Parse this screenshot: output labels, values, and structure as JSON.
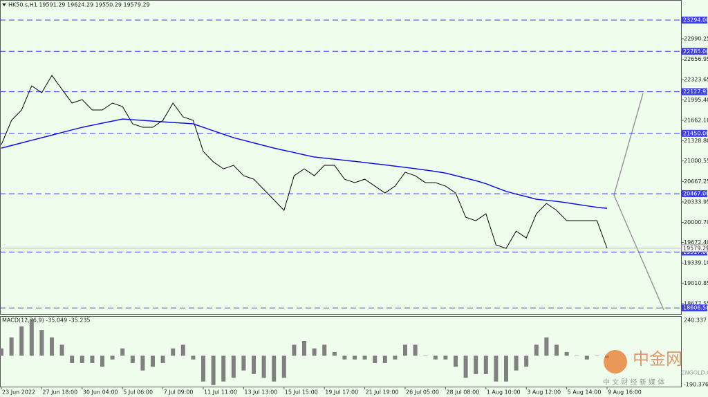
{
  "chart_data": [
    {
      "type": "line",
      "title": "HK50.s,H1  19591.29 19624.29 19550.29 19579.29",
      "categories": [
        "23 Jun 2022",
        null,
        null,
        null,
        "27 Jun 18:00",
        null,
        null,
        null,
        "30 Jun 04:00",
        null,
        null,
        null,
        "5 Jul 06:00",
        null,
        null,
        null,
        "7 Jul 09:00",
        null,
        null,
        null,
        "11 Jul 11:00",
        null,
        null,
        null,
        "13 Jul 13:00",
        null,
        null,
        null,
        "15 Jul 15:00",
        null,
        null,
        null,
        "19 Jul 17:00",
        null,
        null,
        null,
        "21 Jul 19:00",
        null,
        null,
        null,
        "26 Jul 05:00",
        null,
        null,
        null,
        "28 Jul 08:00",
        null,
        null,
        null,
        "1 Aug 10:00",
        null,
        null,
        null,
        "3 Aug 12:00",
        null,
        null,
        null,
        "5 Aug 14:00",
        null,
        null,
        null,
        "9 Aug 16:00"
      ],
      "series": [
        {
          "color": "#000000",
          "values": [
            21267,
            21661,
            21830,
            22224,
            22112,
            22393,
            22168,
            21943,
            21999,
            21830,
            21830,
            21943,
            21886,
            21605,
            21549,
            21549,
            21661,
            21943,
            21718,
            21661,
            21154,
            20985,
            20872,
            20929,
            20760,
            20703,
            20535,
            20366,
            20196,
            20760,
            20872,
            20760,
            20929,
            20929,
            20703,
            20647,
            20703,
            20591,
            20478,
            20591,
            20816,
            20760,
            20647,
            20647,
            20591,
            20478,
            20084,
            20028,
            20140,
            19633,
            19577,
            19858,
            19746,
            20140,
            20309,
            20196,
            20028,
            20028,
            20028,
            20028,
            19579.29
          ]
        },
        {
          "color": "#1010e0",
          "values": [
            21210,
            21252,
            21294,
            21337,
            21379,
            21421,
            21464,
            21506,
            21548,
            21582,
            21616,
            21649,
            21683,
            21672,
            21661,
            21649,
            21638,
            21627,
            21616,
            21605,
            21548,
            21492,
            21435,
            21379,
            21337,
            21294,
            21252,
            21210,
            21173,
            21137,
            21100,
            21064,
            21046,
            21029,
            21011,
            20994,
            20975,
            20955,
            20936,
            20916,
            20896,
            20874,
            20852,
            20830,
            20803,
            20762,
            20720,
            20679,
            20630,
            20567,
            20505,
            20460,
            20420,
            20376,
            20360,
            20343,
            20320,
            20295,
            20270,
            20245,
            20230
          ]
        }
      ],
      "ylim": [
        18508,
        23610
      ],
      "yticks": [
        22990.25,
        22656.95,
        22323.65,
        {
          "value": 21995.4,
          "label": "21995.40"
        },
        {
          "value": 21662.1,
          "label": "21662.10"
        },
        {
          "value": 21328.8,
          "label": "21328.80"
        },
        21000.55,
        20667.25,
        20333.95,
        {
          "value": 20000.7,
          "label": "20000.70"
        },
        {
          "value": 19672.4,
          "label": "19672.40"
        },
        {
          "value": 19339.1,
          "label": "19339.10"
        },
        19010.85,
        18677.55
      ],
      "levels": [
        {
          "value": 23294,
          "label": "23294.00"
        },
        {
          "value": 22785,
          "label": "22785.00"
        },
        22127.93,
        {
          "value": 21450,
          "label": "21450.00"
        },
        {
          "value": 20467,
          "label": "20467.00"
        },
        {
          "value": 19517,
          "label": "19517.00"
        },
        18606.58
      ],
      "current": 19579.29
    },
    {
      "type": "bar",
      "title": "MACD(12,26,9) -35.049 -35.235",
      "color": "#808080",
      "values": [
        45,
        113,
        181,
        227,
        159,
        113,
        68,
        -45,
        -45,
        -45,
        -68,
        -23,
        45,
        -45,
        -91,
        -68,
        -45,
        45,
        68,
        -23,
        -159,
        -181,
        -159,
        -136,
        -91,
        -113,
        -136,
        -159,
        -136,
        68,
        91,
        45,
        68,
        23,
        -23,
        -23,
        -23,
        -45,
        -45,
        -23,
        68,
        68,
        0,
        -23,
        -23,
        -68,
        -136,
        -113,
        -113,
        -159,
        -159,
        -91,
        -68,
        68,
        113,
        68,
        23,
        0,
        -23,
        0,
        -14
      ],
      "ylim": [
        -190.376,
        240.337
      ],
      "yticks": [
        240.337,
        -190.376
      ]
    }
  ],
  "watermark": {
    "brand": "中金网",
    "site": "CNGOLD.COM",
    "slogan": "中 文 财 经 新 媒 体"
  }
}
